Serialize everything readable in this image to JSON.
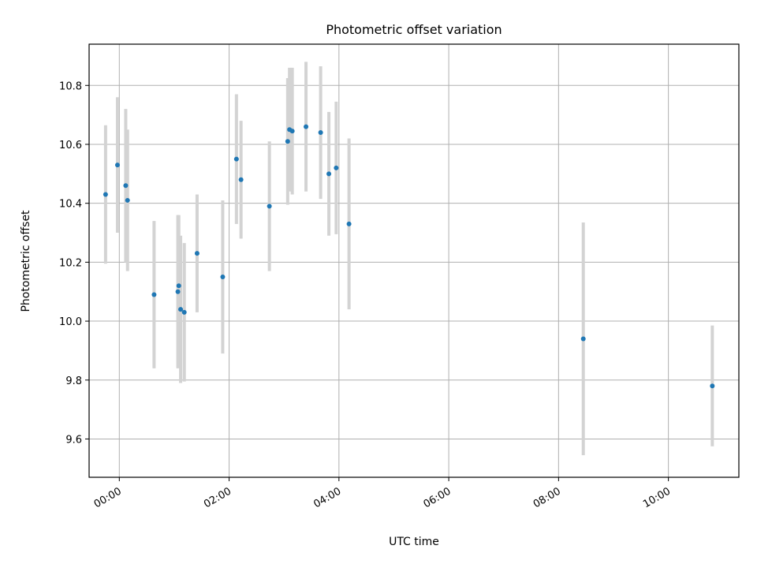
{
  "chart_data": {
    "type": "scatter",
    "title": "Photometric offset variation",
    "xlabel": "UTC time",
    "ylabel": "Photometric offset",
    "x_ticks": [
      "00:00",
      "02:00",
      "04:00",
      "06:00",
      "08:00",
      "10:00"
    ],
    "y_ticks": [
      "9.6",
      "9.8",
      "10.0",
      "10.2",
      "10.4",
      "10.6",
      "10.8"
    ],
    "xlim": [
      "23:27",
      "11:17"
    ],
    "ylim": [
      9.47,
      10.94
    ],
    "grid": true,
    "colors": {
      "point": "#1f77b4",
      "errorbar": "#d3d3d3",
      "grid": "#b0b0b0"
    },
    "points": [
      {
        "x": "23:45",
        "y": 10.43,
        "err": 0.235
      },
      {
        "x": "23:58",
        "y": 10.53,
        "err": 0.23
      },
      {
        "x": "00:07",
        "y": 10.46,
        "err": 0.26
      },
      {
        "x": "00:09",
        "y": 10.41,
        "err": 0.24
      },
      {
        "x": "00:38",
        "y": 10.09,
        "err": 0.25
      },
      {
        "x": "01:04",
        "y": 10.1,
        "err": 0.26
      },
      {
        "x": "01:05",
        "y": 10.12,
        "err": 0.24
      },
      {
        "x": "01:07",
        "y": 10.04,
        "err": 0.25
      },
      {
        "x": "01:11",
        "y": 10.03,
        "err": 0.235
      },
      {
        "x": "01:25",
        "y": 10.23,
        "err": 0.2
      },
      {
        "x": "01:53",
        "y": 10.15,
        "err": 0.26
      },
      {
        "x": "02:08",
        "y": 10.55,
        "err": 0.22
      },
      {
        "x": "02:13",
        "y": 10.48,
        "err": 0.2
      },
      {
        "x": "02:44",
        "y": 10.39,
        "err": 0.22
      },
      {
        "x": "03:04",
        "y": 10.61,
        "err": 0.215
      },
      {
        "x": "03:06",
        "y": 10.65,
        "err": 0.21
      },
      {
        "x": "03:09",
        "y": 10.645,
        "err": 0.215
      },
      {
        "x": "03:24",
        "y": 10.66,
        "err": 0.22
      },
      {
        "x": "03:40",
        "y": 10.64,
        "err": 0.225
      },
      {
        "x": "03:49",
        "y": 10.5,
        "err": 0.21
      },
      {
        "x": "03:57",
        "y": 10.52,
        "err": 0.225
      },
      {
        "x": "04:11",
        "y": 10.33,
        "err": 0.29
      },
      {
        "x": "08:27",
        "y": 9.94,
        "err": 0.395
      },
      {
        "x": "10:48",
        "y": 9.78,
        "err": 0.205
      }
    ]
  }
}
